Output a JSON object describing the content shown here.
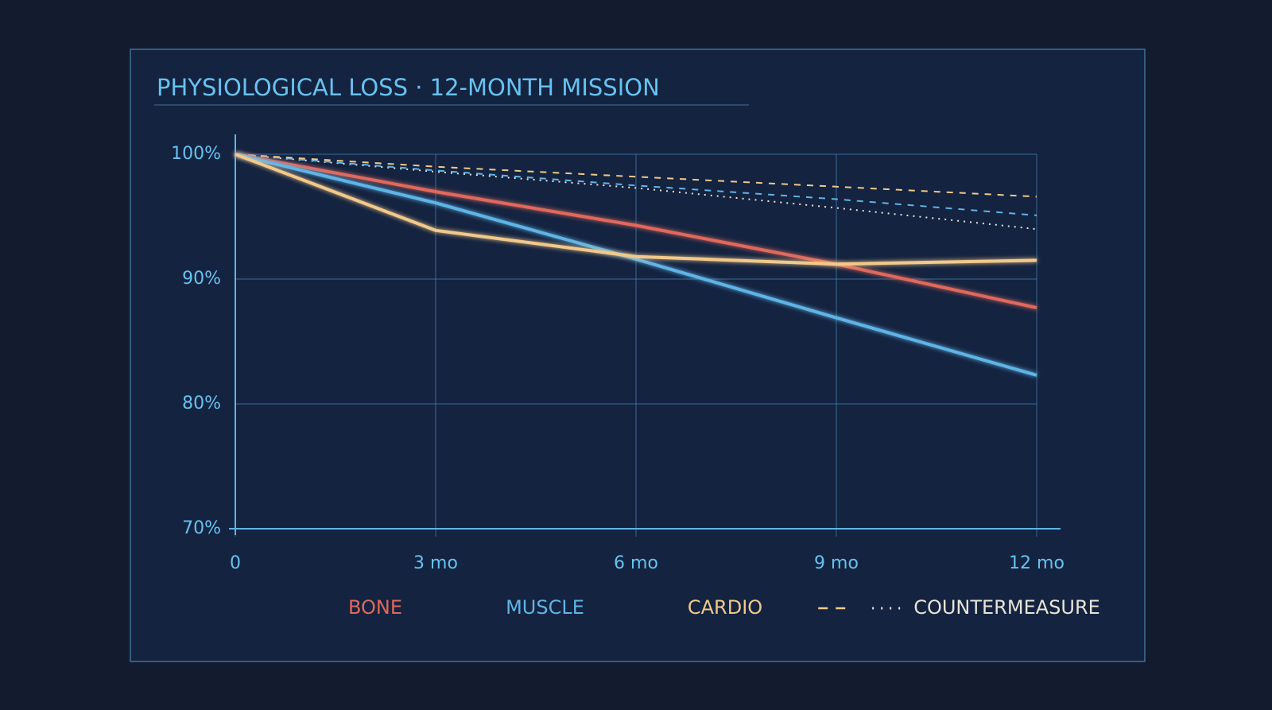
{
  "chart_data": {
    "type": "line",
    "title": "PHYSIOLOGICAL LOSS · 12-MONTH MISSION",
    "x": [
      0,
      3,
      6,
      9,
      12
    ],
    "xlim": [
      0,
      12
    ],
    "xticks": [
      0,
      {
        "value": 3,
        "label": "3 mo"
      },
      {
        "value": 6,
        "label": "6 mo"
      },
      {
        "value": 9,
        "label": "9 mo"
      },
      {
        "value": 12,
        "label": "12 mo"
      }
    ],
    "ylim": [
      70,
      100
    ],
    "yticks": [
      {
        "value": 70,
        "label": "70%"
      },
      {
        "value": 80,
        "label": "80%"
      },
      {
        "value": 90,
        "label": "90%"
      },
      {
        "value": 100,
        "label": "100%"
      }
    ],
    "grid": true,
    "legend": "bottom",
    "countermeasure_label": "COUNTERMEASURE",
    "series": [
      {
        "name": "BONE",
        "color": "#e0695c",
        "values": [
          100,
          97.0,
          94.3,
          91.2,
          87.7
        ],
        "countermeasure_values": [
          100,
          98.6,
          97.3,
          95.7,
          94.0
        ]
      },
      {
        "name": "MUSCLE",
        "color": "#5fb4e6",
        "values": [
          100,
          96.1,
          91.6,
          86.9,
          82.3
        ],
        "countermeasure_values": [
          100,
          98.7,
          97.5,
          96.4,
          95.1
        ]
      },
      {
        "name": "CARDIO",
        "color": "#f2c98a",
        "values": [
          100,
          93.9,
          91.8,
          91.2,
          91.5
        ],
        "countermeasure_values": [
          100,
          99.0,
          98.2,
          97.4,
          96.6
        ]
      }
    ]
  }
}
